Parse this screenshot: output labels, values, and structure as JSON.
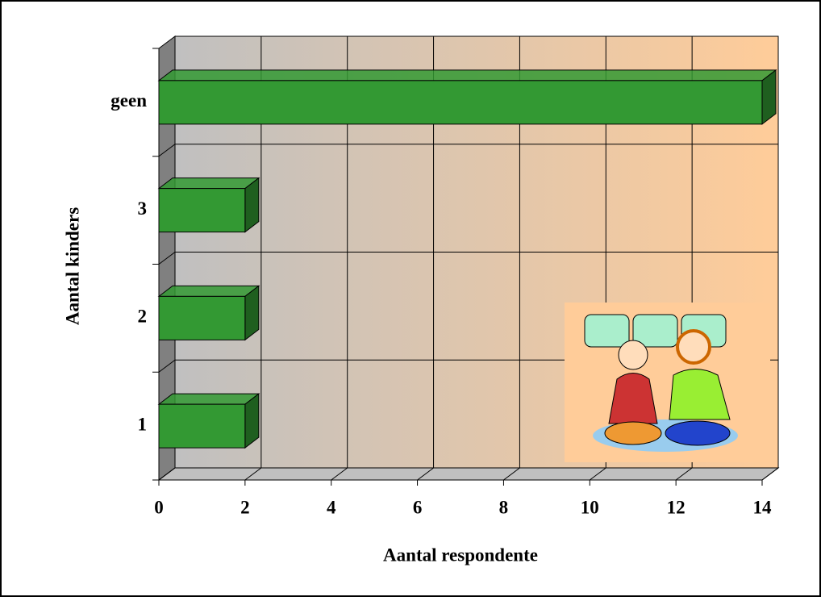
{
  "chart_data": {
    "type": "bar3d_horizontal",
    "x_label": "Aantal respondente",
    "y_label": "Aantal kinders",
    "categories": [
      "1",
      "2",
      "3",
      "geen"
    ],
    "values": [
      2,
      2,
      2,
      14
    ],
    "color": "#339933",
    "xlim": [
      0,
      14
    ],
    "xticks": [
      0,
      2,
      4,
      6,
      8,
      10,
      12,
      14
    ],
    "grid": true
  }
}
